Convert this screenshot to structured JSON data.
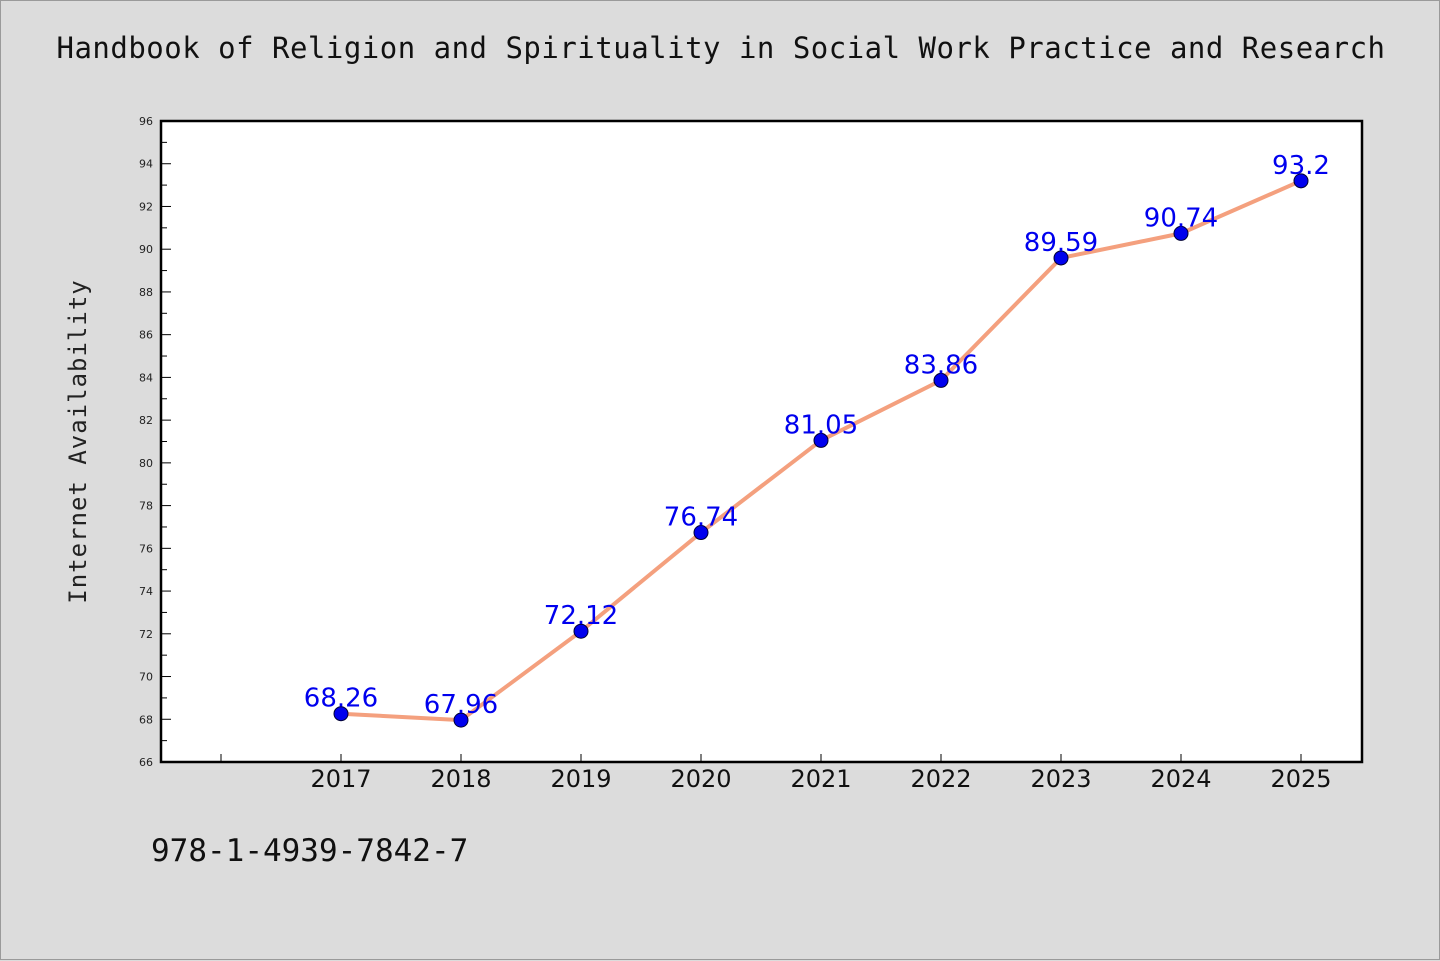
{
  "header": {
    "title": "Handbook of Religion and Spirituality in Social Work Practice and Research"
  },
  "footer": {
    "code": "978-1-4939-7842-7"
  },
  "colors": {
    "background": "#dcdcdc",
    "plot_background": "#ffffff",
    "line": "#f4a07e",
    "marker": "#0000ee",
    "data_label": "#0000ee"
  },
  "chart_data": {
    "type": "line",
    "title": "Handbook of Religion and Spirituality in Social Work Practice and Research",
    "xlabel": "",
    "ylabel": "Internet Availability",
    "categories": [
      "2017",
      "2018",
      "2019",
      "2020",
      "2021",
      "2022",
      "2023",
      "2024",
      "2025"
    ],
    "series": [
      {
        "values": [
          68.26,
          67.96,
          72.12,
          76.74,
          81.05,
          83.86,
          89.59,
          90.74,
          93.2
        ],
        "labels": [
          "68.26",
          "67.96",
          "72.12",
          "76.74",
          "81.05",
          "83.86",
          "89.59",
          "90.74",
          "93.2"
        ]
      }
    ],
    "ylim": [
      66,
      96
    ],
    "yticks": [
      "66",
      "68",
      "70",
      "72",
      "74",
      "76",
      "78",
      "80",
      "82",
      "84",
      "86",
      "88",
      "90",
      "92",
      "94",
      "96"
    ],
    "grid": false,
    "legend": "none"
  }
}
